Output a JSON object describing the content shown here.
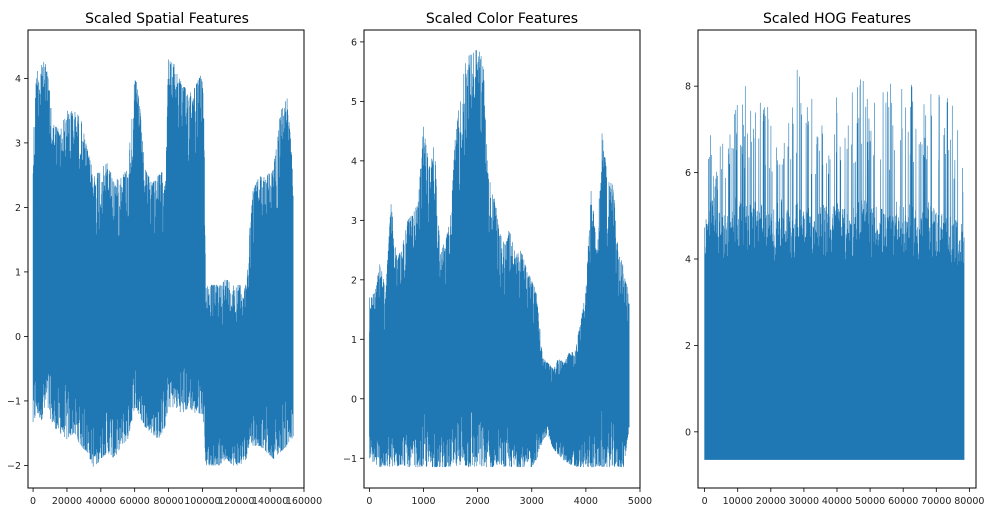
{
  "chart_data": [
    {
      "type": "line",
      "title": "Scaled Spatial Features",
      "xlim": [
        -3000,
        160000
      ],
      "ylim": [
        -2.35,
        4.75
      ],
      "xticks": [
        0,
        20000,
        40000,
        60000,
        80000,
        100000,
        120000,
        140000,
        160000
      ],
      "yticks": [
        -2,
        -1,
        0,
        1,
        2,
        3,
        4
      ],
      "color": "#1f77b4",
      "n_points": 153600,
      "envelope": {
        "x": [
          0,
          2000,
          5000,
          8000,
          12000,
          16000,
          20000,
          24000,
          28000,
          32000,
          36000,
          40000,
          44000,
          48000,
          52000,
          56000,
          60000,
          62000,
          66000,
          70000,
          74000,
          78000,
          80000,
          84000,
          88000,
          92000,
          96000,
          100000,
          101000,
          102000,
          106000,
          110000,
          114000,
          118000,
          122000,
          126000,
          128000,
          130000,
          134000,
          138000,
          142000,
          146000,
          150000,
          153600
        ],
        "max": [
          3.0,
          4.1,
          4.3,
          4.2,
          3.3,
          3.2,
          3.5,
          3.5,
          3.4,
          2.9,
          2.5,
          2.6,
          2.7,
          2.4,
          2.5,
          2.6,
          4.0,
          3.9,
          2.6,
          2.4,
          2.5,
          2.6,
          4.3,
          4.2,
          3.9,
          3.8,
          3.9,
          4.1,
          3.3,
          0.8,
          0.8,
          0.8,
          0.9,
          0.8,
          0.8,
          0.8,
          1.7,
          2.3,
          2.5,
          2.5,
          2.6,
          3.5,
          3.7,
          2.6
        ],
        "min": [
          -1.4,
          -1.2,
          -1.3,
          -1.1,
          -1.4,
          -1.5,
          -1.6,
          -1.5,
          -1.7,
          -1.8,
          -2.05,
          -1.9,
          -1.8,
          -1.9,
          -1.7,
          -1.6,
          -1.1,
          -1.2,
          -1.4,
          -1.5,
          -1.6,
          -1.4,
          -1.1,
          -1.1,
          -1.2,
          -1.1,
          -1.2,
          -1.2,
          -1.4,
          -2.0,
          -2.0,
          -2.0,
          -1.9,
          -2.0,
          -2.0,
          -1.9,
          -1.6,
          -1.7,
          -1.7,
          -1.8,
          -1.9,
          -1.8,
          -1.7,
          -1.6
        ]
      }
    },
    {
      "type": "line",
      "title": "Scaled Color Features",
      "xlim": [
        -100,
        5000
      ],
      "ylim": [
        -1.5,
        6.2
      ],
      "xticks": [
        0,
        1000,
        2000,
        3000,
        4000,
        5000
      ],
      "yticks": [
        -1,
        0,
        1,
        2,
        3,
        4,
        5,
        6
      ],
      "color": "#1f77b4",
      "n_points": 4800,
      "envelope": {
        "x": [
          0,
          100,
          200,
          300,
          400,
          500,
          600,
          700,
          800,
          900,
          1000,
          1100,
          1200,
          1300,
          1400,
          1500,
          1600,
          1700,
          1800,
          1900,
          2000,
          2100,
          2200,
          2300,
          2400,
          2500,
          2600,
          2700,
          2800,
          2900,
          3000,
          3100,
          3200,
          3300,
          3400,
          3500,
          3600,
          3700,
          3800,
          3900,
          4000,
          4100,
          4200,
          4300,
          4400,
          4500,
          4600,
          4700,
          4800
        ],
        "max": [
          1.7,
          1.8,
          2.3,
          1.8,
          3.3,
          2.4,
          2.5,
          3.0,
          3.1,
          3.3,
          4.6,
          3.9,
          4.3,
          2.6,
          2.6,
          3.1,
          4.6,
          5.2,
          5.8,
          5.8,
          5.9,
          5.7,
          3.7,
          3.5,
          2.8,
          2.6,
          2.9,
          2.4,
          2.5,
          2.2,
          2.0,
          1.8,
          0.7,
          0.6,
          0.5,
          0.7,
          0.6,
          0.8,
          0.8,
          1.3,
          1.8,
          3.6,
          2.5,
          4.5,
          3.7,
          3.6,
          2.5,
          2.2,
          1.7
        ],
        "min": [
          -1.0,
          -1.1,
          -1.15,
          -1.15,
          -1.15,
          -1.15,
          -1.1,
          -1.15,
          -1.15,
          -1.15,
          -1.15,
          -1.15,
          -1.15,
          -1.15,
          -1.15,
          -1.15,
          -1.15,
          -1.1,
          -1.15,
          -1.15,
          -1.15,
          -1.15,
          -1.15,
          -1.15,
          -1.1,
          -1.15,
          -1.15,
          -1.15,
          -1.15,
          -1.15,
          -1.15,
          -1.0,
          -0.7,
          -0.6,
          -0.85,
          -0.95,
          -1.05,
          -1.1,
          -1.15,
          -1.15,
          -1.15,
          -1.15,
          -1.15,
          -1.15,
          -1.15,
          -1.15,
          -1.15,
          -1.15,
          -0.5
        ]
      }
    },
    {
      "type": "line",
      "title": "Scaled HOG Features",
      "xlim": [
        -2000,
        82000
      ],
      "ylim": [
        -1.3,
        9.3
      ],
      "xticks": [
        0,
        10000,
        20000,
        30000,
        40000,
        50000,
        60000,
        70000,
        80000
      ],
      "yticks": [
        0,
        2,
        4,
        6,
        8
      ],
      "color": "#1f77b4",
      "n_points": 78400,
      "envelope": {
        "x": [
          0,
          1000,
          3000,
          5000,
          8000,
          10000,
          12000,
          15000,
          18000,
          20000,
          23000,
          25000,
          28000,
          30000,
          33000,
          35000,
          38000,
          40000,
          43000,
          45000,
          48000,
          50000,
          53000,
          55000,
          58000,
          60000,
          63000,
          65000,
          68000,
          70000,
          72000,
          74000,
          76000,
          78400
        ],
        "max": [
          5.0,
          7.8,
          5.7,
          6.8,
          7.1,
          8.0,
          8.2,
          8.9,
          8.0,
          7.2,
          7.5,
          7.6,
          8.6,
          8.2,
          7.8,
          7.2,
          7.3,
          8.6,
          7.4,
          8.3,
          8.5,
          7.1,
          8.4,
          8.1,
          8.0,
          8.8,
          7.9,
          7.5,
          7.8,
          8.4,
          7.3,
          8.8,
          7.6,
          7.2
        ],
        "min": [
          -0.65,
          -0.65,
          -0.65,
          -0.65,
          -0.65,
          -0.65,
          -0.65,
          -0.65,
          -0.65,
          -0.65,
          -0.65,
          -0.65,
          -0.65,
          -0.65,
          -0.65,
          -0.65,
          -0.65,
          -0.65,
          -0.65,
          -0.65,
          -0.65,
          -0.65,
          -0.65,
          -0.65,
          -0.65,
          -0.65,
          -0.65,
          -0.65,
          -0.65,
          -0.65,
          -0.65,
          -0.65,
          -0.65,
          -0.65
        ],
        "base": [
          5.0,
          5.2,
          5.5,
          5.0,
          5.3,
          5.6,
          5.2,
          5.4,
          5.3,
          5.1,
          5.4,
          5.2,
          5.3,
          5.5,
          5.0,
          5.3,
          5.2,
          5.4,
          5.1,
          5.3,
          5.5,
          5.2,
          5.3,
          5.0,
          5.4,
          5.2,
          5.3,
          5.1,
          5.4,
          5.2,
          5.1,
          5.0,
          4.9,
          4.8
        ]
      }
    }
  ]
}
